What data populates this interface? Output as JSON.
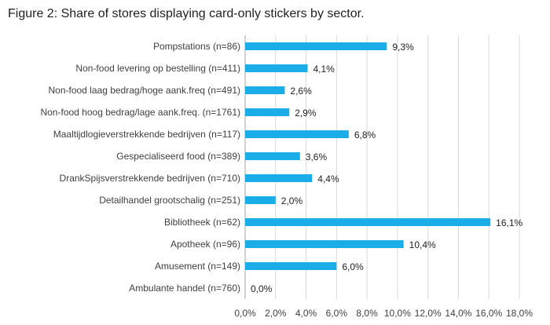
{
  "chart_data": {
    "type": "bar",
    "orientation": "horizontal",
    "title": "Figure 2: Share of stores displaying card-only stickers by sector.",
    "categories": [
      "Pompstations (n=86)",
      "Non-food levering op bestelling (n=411)",
      "Non-food laag bedrag/hoge aank.freq (n=491)",
      "Non-food hoog bedrag/lage aank.freq. (n=1761)",
      "Maaltijdlogieverstrekkende bedrijven (n=117)",
      "Gespecialiseerd food (n=389)",
      "DrankSpijsverstrekkende bedrijven (n=710)",
      "Detailhandel grootschalig (n=251)",
      "Bibliotheek (n=62)",
      "Apotheek (n=96)",
      "Amusement (n=149)",
      "Ambulante handel  (n=760)"
    ],
    "values": [
      9.3,
      4.1,
      2.6,
      2.9,
      6.8,
      3.6,
      4.4,
      2.0,
      16.1,
      10.4,
      6.0,
      0.0
    ],
    "value_labels": [
      "9,3%",
      "4,1%",
      "2,6%",
      "2,9%",
      "6,8%",
      "3,6%",
      "4,4%",
      "2,0%",
      "16,1%",
      "10,4%",
      "6,0%",
      "0,0%"
    ],
    "xlim": [
      0,
      18
    ],
    "x_ticks": [
      0,
      2,
      4,
      6,
      8,
      10,
      12,
      14,
      16,
      18
    ],
    "x_tick_labels": [
      "0,0%",
      "2,0%",
      "4,0%",
      "6,0%",
      "8,0%",
      "10,0%",
      "12,0%",
      "14,0%",
      "16,0%",
      "18,0%"
    ],
    "grid": "vertical",
    "bar_color": "#1AADE7",
    "grid_color": "#D9D9D9",
    "axis_color": "#A6A6A6"
  }
}
